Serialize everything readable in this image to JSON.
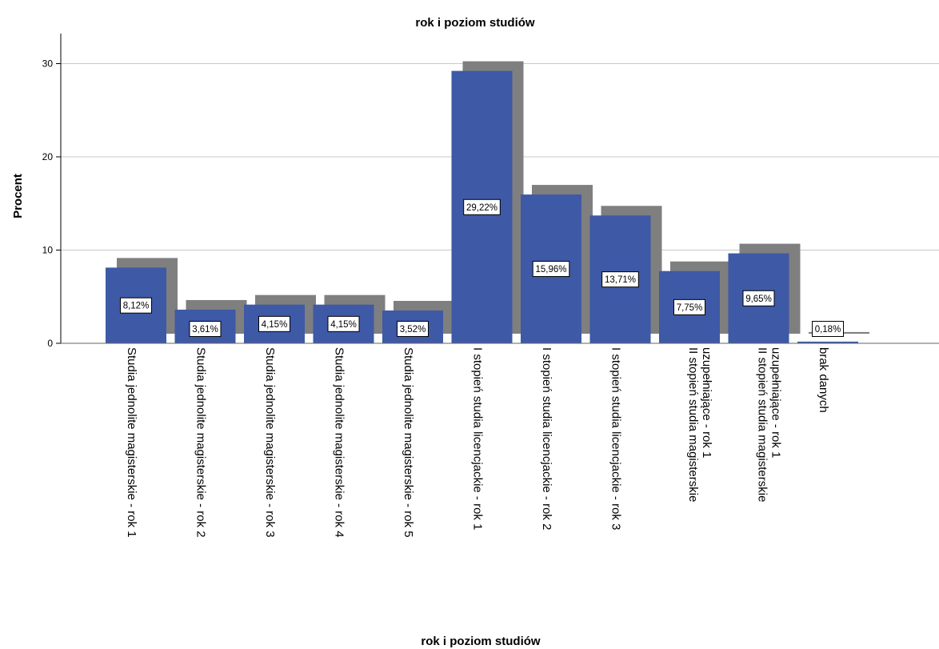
{
  "chart_data": {
    "type": "bar",
    "title": "rok i poziom studiów",
    "xlabel": "rok i poziom studiów",
    "ylabel": "Procent",
    "ylim": [
      0,
      33
    ],
    "yticks": [
      0,
      10,
      20,
      30
    ],
    "grid": true,
    "legend": "none",
    "colors": {
      "bar": "#3e59a6",
      "shadow": "#7f7f7f",
      "grid": "#c8c8c8"
    },
    "categories": [
      [
        "Studia jednolite magisterskie - rok 1"
      ],
      [
        "Studia jednolite magisterskie - rok 2"
      ],
      [
        "Studia jednolite magisterskie - rok 3"
      ],
      [
        "Studia jednolite magisterskie - rok 4"
      ],
      [
        "Studia jednolite magisterskie - rok 5"
      ],
      [
        "I stopień studia licencjackie - rok 1"
      ],
      [
        "I stopień studia licencjackie - rok 2"
      ],
      [
        "I stopień studia licencjackie - rok 3"
      ],
      [
        "II stopień studia magisterskie",
        "uzupełniające - rok 1"
      ],
      [
        "II stopień studia magisterskie",
        "uzupełniające - rok 1"
      ],
      [
        "brak danych"
      ]
    ],
    "values": [
      8.12,
      3.61,
      4.15,
      4.15,
      3.52,
      29.22,
      15.96,
      13.71,
      7.75,
      9.65,
      0.18
    ],
    "data_labels": [
      "8,12%",
      "3,61%",
      "4,15%",
      "4,15%",
      "3,52%",
      "29,22%",
      "15,96%",
      "13,71%",
      "7,75%",
      "9,65%",
      "0,18%"
    ]
  }
}
